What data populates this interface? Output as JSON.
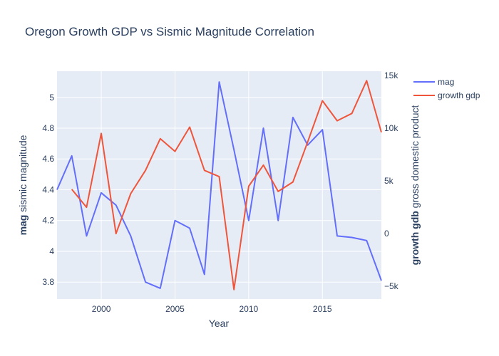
{
  "chart_data": {
    "type": "line",
    "title": "Oregon Growth GDP vs Sismic Magnitude Correlation",
    "xlabel": "Year",
    "ylabel_left_bold": "mag",
    "ylabel_left_rest": " sismic magnitude",
    "ylabel_right_bold": "growth gdb",
    "ylabel_right_rest": " gross domestic product",
    "xlim": [
      1997,
      2019
    ],
    "xticks": [
      2000,
      2005,
      2010,
      2015
    ],
    "xtick_labels": [
      "2000",
      "2005",
      "2010",
      "2015"
    ],
    "ylim_left": [
      3.69,
      5.17
    ],
    "yticks_left": [
      3.8,
      4,
      4.2,
      4.4,
      4.6,
      4.8,
      5
    ],
    "ytick_labels_left": [
      "3.8",
      "4",
      "4.2",
      "4.4",
      "4.6",
      "4.8",
      "5"
    ],
    "ylim_right": [
      -6200,
      15400
    ],
    "yticks_right": [
      -5000,
      0,
      5000,
      10000,
      15000
    ],
    "ytick_labels_right": [
      "−5k",
      "0",
      "5k",
      "10k",
      "15k"
    ],
    "grid": true,
    "legend_position": "top-right",
    "series": [
      {
        "name": "mag",
        "axis": "left",
        "color": "#636efa",
        "x": [
          1997,
          1998,
          1999,
          2000,
          2001,
          2002,
          2003,
          2004,
          2005,
          2006,
          2007,
          2008,
          2009,
          2010,
          2011,
          2012,
          2013,
          2014,
          2015,
          2016,
          2017,
          2018,
          2019
        ],
        "values": [
          4.4,
          4.62,
          4.1,
          4.38,
          4.3,
          4.1,
          3.8,
          3.76,
          4.2,
          4.15,
          3.85,
          5.1,
          4.66,
          4.2,
          4.8,
          4.2,
          4.87,
          4.69,
          4.79,
          4.1,
          4.09,
          4.07,
          3.81
        ]
      },
      {
        "name": "growth gdp",
        "axis": "right",
        "color": "#ef553b",
        "x": [
          1998,
          1999,
          2000,
          2001,
          2002,
          2003,
          2004,
          2005,
          2006,
          2007,
          2008,
          2009,
          2010,
          2011,
          2012,
          2013,
          2014,
          2015,
          2016,
          2017,
          2018,
          2019
        ],
        "values": [
          4200,
          2500,
          9500,
          0,
          3800,
          6000,
          9000,
          7800,
          10100,
          6000,
          5400,
          -5300,
          4500,
          6500,
          4000,
          4900,
          8700,
          12600,
          10700,
          11400,
          14500,
          9600
        ]
      }
    ]
  }
}
